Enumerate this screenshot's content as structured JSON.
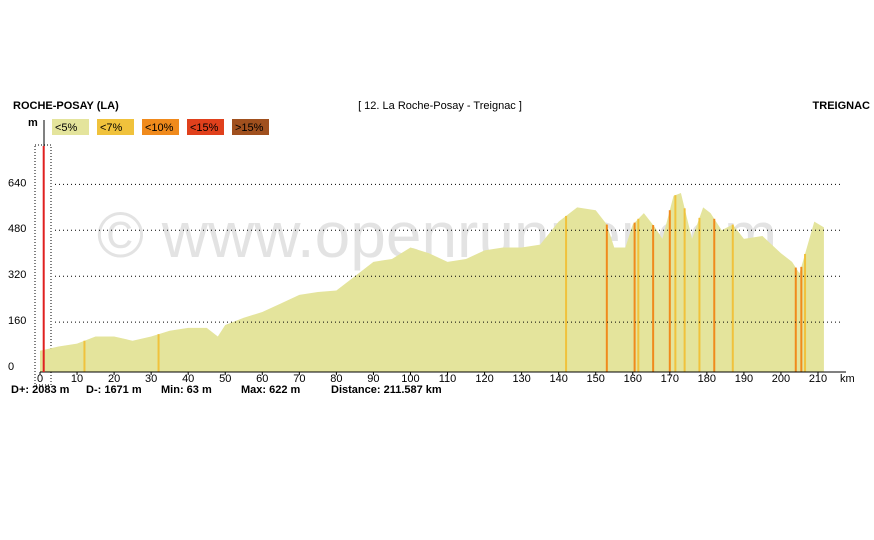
{
  "chart_data": {
    "type": "area",
    "title": "[ 12. La Roche-Posay - Treignac ]",
    "start_label": "ROCHE-POSAY (LA)",
    "end_label": "TREIGNAC",
    "watermark": "© www.openrunner.com",
    "y_label": "m",
    "x_label": "km",
    "legend": [
      {
        "label": "<5%",
        "color": "#e4e49c"
      },
      {
        "label": "<7%",
        "color": "#f0c23c"
      },
      {
        "label": "<10%",
        "color": "#f08a1c"
      },
      {
        "label": "<15%",
        "color": "#e0401c"
      },
      {
        "label": ">15%",
        "color": "#a0501e"
      }
    ],
    "x": [
      0,
      5,
      10,
      15,
      20,
      25,
      30,
      35,
      40,
      45,
      48,
      50,
      55,
      60,
      65,
      70,
      75,
      80,
      85,
      90,
      95,
      100,
      105,
      110,
      115,
      120,
      125,
      130,
      135,
      140,
      145,
      150,
      153,
      155,
      158,
      160,
      163,
      166,
      168,
      171,
      173,
      176,
      179,
      181,
      184,
      187,
      190,
      195,
      200,
      203,
      205,
      207,
      209,
      211.6
    ],
    "values": [
      60,
      75,
      85,
      110,
      110,
      95,
      110,
      130,
      140,
      140,
      110,
      150,
      175,
      195,
      225,
      255,
      265,
      270,
      320,
      370,
      380,
      420,
      400,
      370,
      380,
      410,
      420,
      420,
      430,
      510,
      560,
      550,
      500,
      420,
      420,
      500,
      540,
      490,
      450,
      600,
      610,
      450,
      560,
      540,
      480,
      500,
      450,
      460,
      400,
      370,
      330,
      420,
      510,
      490
    ],
    "steep_sections": [
      {
        "x": 12,
        "grade": 1
      },
      {
        "x": 32,
        "grade": 1
      },
      {
        "x": 142,
        "grade": 1
      },
      {
        "x": 153,
        "grade": 2
      },
      {
        "x": 160.5,
        "grade": 2
      },
      {
        "x": 161.5,
        "grade": 1
      },
      {
        "x": 165.5,
        "grade": 2
      },
      {
        "x": 170,
        "grade": 2
      },
      {
        "x": 171.5,
        "grade": 1
      },
      {
        "x": 174,
        "grade": 1
      },
      {
        "x": 178,
        "grade": 1
      },
      {
        "x": 182,
        "grade": 2
      },
      {
        "x": 187,
        "grade": 1
      },
      {
        "x": 204,
        "grade": 2
      },
      {
        "x": 205.5,
        "grade": 2
      },
      {
        "x": 206.5,
        "grade": 1
      }
    ],
    "marker_x": 1,
    "xlim": [
      0,
      210
    ],
    "ylim": [
      0,
      840
    ],
    "xticks": [
      0,
      10,
      20,
      30,
      40,
      50,
      60,
      70,
      80,
      90,
      100,
      110,
      120,
      130,
      140,
      150,
      160,
      170,
      180,
      190,
      200,
      210
    ],
    "yticks": [
      0,
      160,
      320,
      480,
      640
    ],
    "grid": true,
    "stats": [
      "D+: 2083 m",
      "D-: 1671 m",
      "Min: 63 m",
      "Max: 622 m",
      "Distance: 211.587 km"
    ]
  }
}
